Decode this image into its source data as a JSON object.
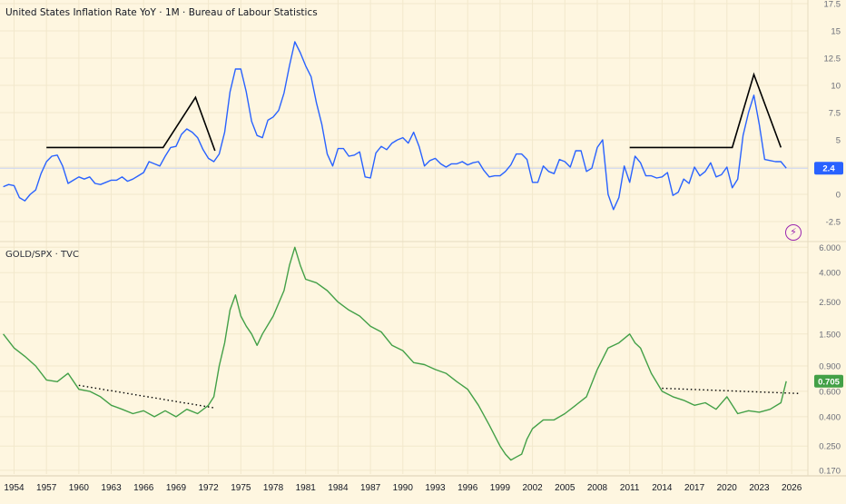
{
  "panes": {
    "top_title": "United States Inflation Rate YoY · 1M · Bureau of Labour Statistics",
    "bottom_title": "GOLD/SPX · TVC"
  },
  "colors": {
    "background": "#fef6e0",
    "grid": "#f2e8cc",
    "inflation_line": "#2962ff",
    "gold_spx_line": "#43a047",
    "annotation": "#000000",
    "inflation_badge": "#2962ff",
    "gold_badge": "#43a047",
    "axis_text": "#6a6d78"
  },
  "icons": {
    "flash": "lightning-icon"
  },
  "chart_data": [
    {
      "type": "line",
      "title": "United States Inflation Rate YoY · 1M · Bureau of Labour Statistics",
      "x_type": "year",
      "xlim": [
        1952.7,
        2027.5
      ],
      "ylim": [
        -4,
        17.5
      ],
      "y_scale": "linear",
      "y_ticks": [
        "17.5",
        "15",
        "12.5",
        "10",
        "7.5",
        "5",
        "2.5",
        "0",
        "-2.5"
      ],
      "grid": true,
      "last_value_label": "2.4",
      "series": [
        {
          "x": [
            1953.0,
            1953.5,
            1954.0,
            1954.5,
            1955.0,
            1955.5,
            1956.0,
            1956.5,
            1957.0,
            1957.5,
            1958.0,
            1958.5,
            1959.0,
            1959.5,
            1960.0,
            1960.5,
            1961.0,
            1961.5,
            1962.0,
            1962.5,
            1963.0,
            1963.5,
            1964.0,
            1964.5,
            1965.0,
            1965.5,
            1966.0,
            1966.5,
            1967.0,
            1967.5,
            1968.0,
            1968.5,
            1969.0,
            1969.5,
            1970.0,
            1970.5,
            1971.0,
            1971.5,
            1972.0,
            1972.5,
            1973.0,
            1973.5,
            1974.0,
            1974.5,
            1975.0,
            1975.5,
            1976.0,
            1976.5,
            1977.0,
            1977.5,
            1978.0,
            1978.5,
            1979.0,
            1979.5,
            1980.0,
            1980.5,
            1981.0,
            1981.5,
            1982.0,
            1982.5,
            1983.0,
            1983.5,
            1984.0,
            1984.5,
            1985.0,
            1985.5,
            1986.0,
            1986.5,
            1987.0,
            1987.5,
            1988.0,
            1988.5,
            1989.0,
            1989.5,
            1990.0,
            1990.5,
            1991.0,
            1991.5,
            1992.0,
            1992.5,
            1993.0,
            1993.5,
            1994.0,
            1994.5,
            1995.0,
            1995.5,
            1996.0,
            1996.5,
            1997.0,
            1997.5,
            1998.0,
            1998.5,
            1999.0,
            1999.5,
            2000.0,
            2000.5,
            2001.0,
            2001.5,
            2002.0,
            2002.5,
            2003.0,
            2003.5,
            2004.0,
            2004.5,
            2005.0,
            2005.5,
            2006.0,
            2006.5,
            2007.0,
            2007.5,
            2008.0,
            2008.5,
            2009.0,
            2009.5,
            2010.0,
            2010.5,
            2011.0,
            2011.5,
            2012.0,
            2012.5,
            2013.0,
            2013.5,
            2014.0,
            2014.5,
            2015.0,
            2015.5,
            2016.0,
            2016.5,
            2017.0,
            2017.5,
            2018.0,
            2018.5,
            2019.0,
            2019.5,
            2020.0,
            2020.5,
            2021.0,
            2021.5,
            2022.0,
            2022.5,
            2023.0,
            2023.5,
            2024.0,
            2024.5,
            2025.0,
            2025.5
          ],
          "y": [
            0.7,
            0.9,
            0.8,
            -0.3,
            -0.6,
            0.0,
            0.4,
            1.9,
            3.0,
            3.5,
            3.6,
            2.6,
            1.0,
            1.3,
            1.6,
            1.4,
            1.6,
            1.0,
            0.9,
            1.1,
            1.3,
            1.3,
            1.6,
            1.2,
            1.4,
            1.7,
            2.0,
            3.0,
            2.8,
            2.6,
            3.5,
            4.3,
            4.4,
            5.5,
            6.0,
            5.7,
            5.2,
            4.1,
            3.3,
            3.0,
            3.7,
            5.7,
            9.4,
            11.5,
            11.5,
            9.4,
            6.7,
            5.4,
            5.2,
            6.8,
            7.1,
            7.7,
            9.3,
            11.8,
            14.0,
            13.0,
            11.8,
            10.8,
            8.4,
            6.4,
            3.7,
            2.6,
            4.2,
            4.2,
            3.5,
            3.6,
            3.9,
            1.6,
            1.5,
            3.8,
            4.4,
            4.1,
            4.7,
            5.0,
            5.2,
            4.7,
            5.7,
            4.4,
            2.6,
            3.1,
            3.3,
            2.8,
            2.5,
            2.8,
            2.8,
            3.0,
            2.7,
            2.9,
            3.0,
            2.2,
            1.6,
            1.7,
            1.7,
            2.1,
            2.7,
            3.7,
            3.7,
            3.2,
            1.1,
            1.1,
            2.6,
            2.1,
            1.9,
            3.2,
            3.0,
            2.5,
            4.0,
            4.0,
            2.1,
            2.4,
            4.3,
            5.0,
            0.0,
            -1.4,
            -0.3,
            2.6,
            1.1,
            3.5,
            2.9,
            1.7,
            1.7,
            1.5,
            1.6,
            2.0,
            -0.1,
            0.2,
            1.4,
            1.0,
            2.5,
            1.7,
            2.1,
            2.9,
            1.6,
            1.8,
            2.5,
            0.6,
            1.4,
            5.4,
            7.5,
            9.1,
            6.4,
            3.2,
            3.1,
            3.0,
            3.0,
            2.4
          ]
        }
      ]
    },
    {
      "type": "line",
      "title": "GOLD/SPX · TVC",
      "x_type": "year",
      "xlim": [
        1952.7,
        2027.5
      ],
      "ylim": [
        0.16,
        6.2
      ],
      "y_scale": "log",
      "y_ticks": [
        "6.000",
        "4.000",
        "2.500",
        "1.500",
        "0.900",
        "0.600",
        "0.400",
        "0.250",
        "0.170"
      ],
      "x_ticks": [
        "1954",
        "1957",
        "1960",
        "1963",
        "1966",
        "1969",
        "1972",
        "1975",
        "1978",
        "1981",
        "1984",
        "1987",
        "1990",
        "1993",
        "1996",
        "1999",
        "2002",
        "2005",
        "2008",
        "2011",
        "2014",
        "2017",
        "2020",
        "2023",
        "2026"
      ],
      "grid": true,
      "last_value_label": "0.705",
      "series": [
        {
          "x": [
            1953.0,
            1954.0,
            1955.0,
            1956.0,
            1957.0,
            1958.0,
            1959.0,
            1960.0,
            1961.0,
            1962.0,
            1963.0,
            1964.0,
            1965.0,
            1966.0,
            1967.0,
            1968.0,
            1969.0,
            1970.0,
            1971.0,
            1972.0,
            1972.5,
            1973.0,
            1973.5,
            1974.0,
            1974.5,
            1975.0,
            1975.5,
            1976.0,
            1976.5,
            1977.0,
            1978.0,
            1979.0,
            1979.5,
            1980.0,
            1980.5,
            1981.0,
            1982.0,
            1983.0,
            1984.0,
            1985.0,
            1986.0,
            1987.0,
            1988.0,
            1989.0,
            1990.0,
            1991.0,
            1992.0,
            1993.0,
            1994.0,
            1995.0,
            1996.0,
            1997.0,
            1998.0,
            1999.0,
            1999.5,
            2000.0,
            2000.5,
            2001.0,
            2001.5,
            2002.0,
            2003.0,
            2004.0,
            2005.0,
            2006.0,
            2007.0,
            2008.0,
            2009.0,
            2010.0,
            2011.0,
            2011.5,
            2012.0,
            2013.0,
            2014.0,
            2015.0,
            2016.0,
            2017.0,
            2018.0,
            2019.0,
            2020.0,
            2021.0,
            2022.0,
            2023.0,
            2024.0,
            2025.0,
            2025.5
          ],
          "y": [
            1.5,
            1.2,
            1.05,
            0.9,
            0.72,
            0.7,
            0.8,
            0.62,
            0.6,
            0.55,
            0.48,
            0.45,
            0.42,
            0.44,
            0.4,
            0.44,
            0.4,
            0.45,
            0.42,
            0.48,
            0.55,
            0.9,
            1.3,
            2.2,
            2.8,
            2.0,
            1.7,
            1.5,
            1.25,
            1.5,
            2.0,
            3.0,
            4.5,
            6.0,
            4.5,
            3.6,
            3.4,
            3.0,
            2.5,
            2.2,
            2.0,
            1.7,
            1.55,
            1.25,
            1.15,
            0.95,
            0.92,
            0.85,
            0.8,
            0.7,
            0.62,
            0.48,
            0.35,
            0.25,
            0.22,
            0.2,
            0.21,
            0.22,
            0.28,
            0.33,
            0.38,
            0.38,
            0.42,
            0.48,
            0.55,
            0.85,
            1.2,
            1.3,
            1.5,
            1.3,
            1.2,
            0.8,
            0.6,
            0.55,
            0.52,
            0.48,
            0.5,
            0.45,
            0.55,
            0.42,
            0.44,
            0.43,
            0.45,
            0.5,
            0.705
          ]
        }
      ]
    }
  ]
}
